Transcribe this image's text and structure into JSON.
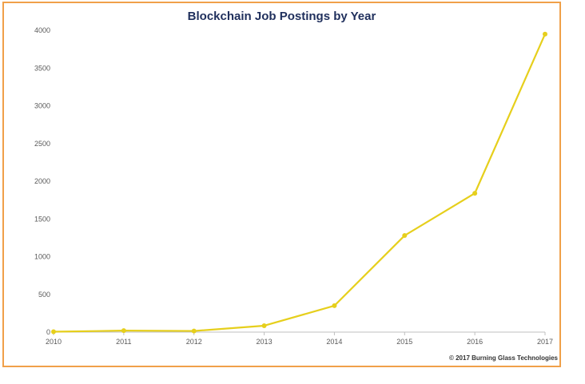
{
  "colors": {
    "frame": "#f0a049",
    "line": "#e6cf1c",
    "title": "#1f2f5c",
    "axis": "#bfbfbf"
  },
  "chart_data": {
    "type": "line",
    "title": "Blockchain Job Postings by Year",
    "xlabel": "",
    "ylabel": "",
    "x": [
      "2010",
      "2011",
      "2012",
      "2013",
      "2014",
      "2015",
      "2016",
      "2017"
    ],
    "series": [
      {
        "values": [
          5,
          20,
          15,
          85,
          350,
          1280,
          1840,
          3950
        ]
      }
    ],
    "ylim": [
      0,
      4000
    ],
    "yticks": [
      0,
      500,
      1000,
      1500,
      2000,
      2500,
      3000,
      3500,
      4000
    ],
    "grid": false,
    "legend": "none",
    "credit": "© 2017 Burning Glass Technologies"
  }
}
